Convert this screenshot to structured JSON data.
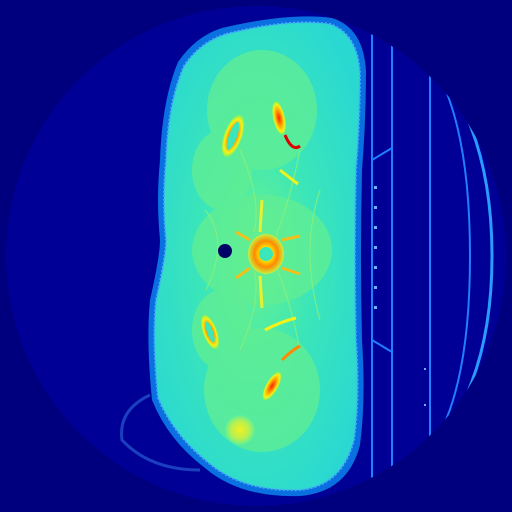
{
  "image": {
    "kind": "ct-scan-cross-section",
    "colormap": "jet",
    "colors": {
      "background": "#00007f",
      "field_of_view": "#000096",
      "soft_tissue": "#2fe0c8",
      "soft_tissue_dark": "#1fd6cf",
      "muscle": "#5cf09a",
      "fat_edge": "#0a6fe0",
      "bone_yellow": "#f2f21a",
      "bone_orange": "#ff8a00",
      "bone_red": "#e00000",
      "table_line": "#1f7fff",
      "air_hole": "#000066"
    }
  }
}
